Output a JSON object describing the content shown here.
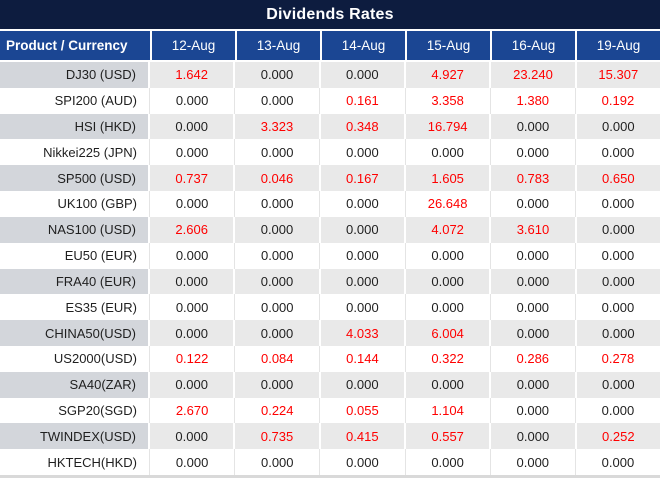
{
  "title": "Dividends Rates",
  "table": {
    "product_header": "Product / Currency",
    "date_columns": [
      "12-Aug",
      "13-Aug",
      "14-Aug",
      "15-Aug",
      "16-Aug",
      "19-Aug"
    ],
    "rows": [
      {
        "product": "DJ30 (USD)",
        "values": [
          "1.642",
          "0.000",
          "0.000",
          "4.927",
          "23.240",
          "15.307"
        ]
      },
      {
        "product": "SPI200 (AUD)",
        "values": [
          "0.000",
          "0.000",
          "0.161",
          "3.358",
          "1.380",
          "0.192"
        ]
      },
      {
        "product": "HSI (HKD)",
        "values": [
          "0.000",
          "3.323",
          "0.348",
          "16.794",
          "0.000",
          "0.000"
        ]
      },
      {
        "product": "Nikkei225 (JPN)",
        "values": [
          "0.000",
          "0.000",
          "0.000",
          "0.000",
          "0.000",
          "0.000"
        ]
      },
      {
        "product": "SP500 (USD)",
        "values": [
          "0.737",
          "0.046",
          "0.167",
          "1.605",
          "0.783",
          "0.650"
        ]
      },
      {
        "product": "UK100 (GBP)",
        "values": [
          "0.000",
          "0.000",
          "0.000",
          "26.648",
          "0.000",
          "0.000"
        ]
      },
      {
        "product": "NAS100 (USD)",
        "values": [
          "2.606",
          "0.000",
          "0.000",
          "4.072",
          "3.610",
          "0.000"
        ]
      },
      {
        "product": "EU50 (EUR)",
        "values": [
          "0.000",
          "0.000",
          "0.000",
          "0.000",
          "0.000",
          "0.000"
        ]
      },
      {
        "product": "FRA40 (EUR)",
        "values": [
          "0.000",
          "0.000",
          "0.000",
          "0.000",
          "0.000",
          "0.000"
        ]
      },
      {
        "product": "ES35 (EUR)",
        "values": [
          "0.000",
          "0.000",
          "0.000",
          "0.000",
          "0.000",
          "0.000"
        ]
      },
      {
        "product": "CHINA50(USD)",
        "values": [
          "0.000",
          "0.000",
          "4.033",
          "6.004",
          "0.000",
          "0.000"
        ]
      },
      {
        "product": "US2000(USD)",
        "values": [
          "0.122",
          "0.084",
          "0.144",
          "0.322",
          "0.286",
          "0.278"
        ]
      },
      {
        "product": "SA40(ZAR)",
        "values": [
          "0.000",
          "0.000",
          "0.000",
          "0.000",
          "0.000",
          "0.000"
        ]
      },
      {
        "product": "SGP20(SGD)",
        "values": [
          "2.670",
          "0.224",
          "0.055",
          "1.104",
          "0.000",
          "0.000"
        ]
      },
      {
        "product": "TWINDEX(USD)",
        "values": [
          "0.000",
          "0.735",
          "0.415",
          "0.557",
          "0.000",
          "0.252"
        ]
      },
      {
        "product": "HKTECH(HKD)",
        "values": [
          "0.000",
          "0.000",
          "0.000",
          "0.000",
          "0.000",
          "0.000"
        ]
      }
    ]
  },
  "colors": {
    "title_bg": "#0D1C3F",
    "header_bg": "#1B4693",
    "alt_row_product_bg": "#D3D6DB",
    "alt_row_data_bg": "#E9E9E9",
    "zero_value_color": "#1F1F1F",
    "nonzero_value_color": "#FF0000"
  }
}
